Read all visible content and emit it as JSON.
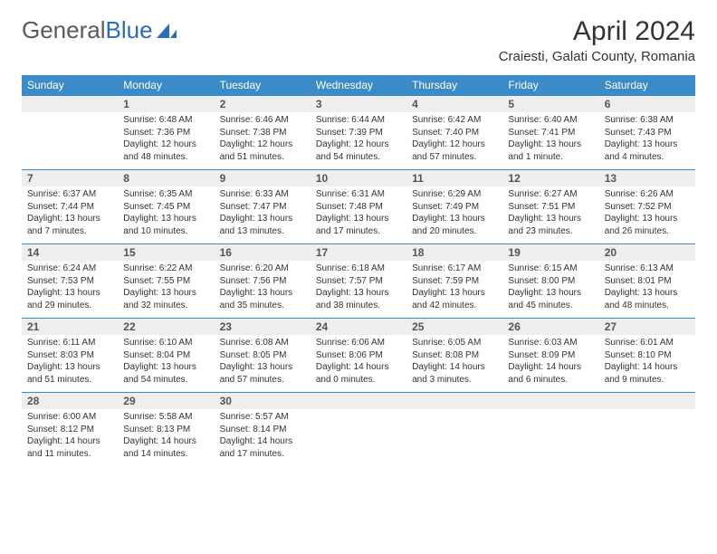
{
  "logo": {
    "text1": "General",
    "text2": "Blue"
  },
  "title": "April 2024",
  "location": "Craiesti, Galati County, Romania",
  "colors": {
    "header_bg": "#3b8bc9",
    "header_fg": "#ffffff",
    "daynum_bg": "#eeeeee",
    "row_border": "#3b8bc9",
    "logo_gray": "#5a5a5a",
    "logo_blue": "#2a6db8"
  },
  "weekdays": [
    "Sunday",
    "Monday",
    "Tuesday",
    "Wednesday",
    "Thursday",
    "Friday",
    "Saturday"
  ],
  "weeks": [
    [
      null,
      {
        "n": "1",
        "sr": "Sunrise: 6:48 AM",
        "ss": "Sunset: 7:36 PM",
        "dl": "Daylight: 12 hours and 48 minutes."
      },
      {
        "n": "2",
        "sr": "Sunrise: 6:46 AM",
        "ss": "Sunset: 7:38 PM",
        "dl": "Daylight: 12 hours and 51 minutes."
      },
      {
        "n": "3",
        "sr": "Sunrise: 6:44 AM",
        "ss": "Sunset: 7:39 PM",
        "dl": "Daylight: 12 hours and 54 minutes."
      },
      {
        "n": "4",
        "sr": "Sunrise: 6:42 AM",
        "ss": "Sunset: 7:40 PM",
        "dl": "Daylight: 12 hours and 57 minutes."
      },
      {
        "n": "5",
        "sr": "Sunrise: 6:40 AM",
        "ss": "Sunset: 7:41 PM",
        "dl": "Daylight: 13 hours and 1 minute."
      },
      {
        "n": "6",
        "sr": "Sunrise: 6:38 AM",
        "ss": "Sunset: 7:43 PM",
        "dl": "Daylight: 13 hours and 4 minutes."
      }
    ],
    [
      {
        "n": "7",
        "sr": "Sunrise: 6:37 AM",
        "ss": "Sunset: 7:44 PM",
        "dl": "Daylight: 13 hours and 7 minutes."
      },
      {
        "n": "8",
        "sr": "Sunrise: 6:35 AM",
        "ss": "Sunset: 7:45 PM",
        "dl": "Daylight: 13 hours and 10 minutes."
      },
      {
        "n": "9",
        "sr": "Sunrise: 6:33 AM",
        "ss": "Sunset: 7:47 PM",
        "dl": "Daylight: 13 hours and 13 minutes."
      },
      {
        "n": "10",
        "sr": "Sunrise: 6:31 AM",
        "ss": "Sunset: 7:48 PM",
        "dl": "Daylight: 13 hours and 17 minutes."
      },
      {
        "n": "11",
        "sr": "Sunrise: 6:29 AM",
        "ss": "Sunset: 7:49 PM",
        "dl": "Daylight: 13 hours and 20 minutes."
      },
      {
        "n": "12",
        "sr": "Sunrise: 6:27 AM",
        "ss": "Sunset: 7:51 PM",
        "dl": "Daylight: 13 hours and 23 minutes."
      },
      {
        "n": "13",
        "sr": "Sunrise: 6:26 AM",
        "ss": "Sunset: 7:52 PM",
        "dl": "Daylight: 13 hours and 26 minutes."
      }
    ],
    [
      {
        "n": "14",
        "sr": "Sunrise: 6:24 AM",
        "ss": "Sunset: 7:53 PM",
        "dl": "Daylight: 13 hours and 29 minutes."
      },
      {
        "n": "15",
        "sr": "Sunrise: 6:22 AM",
        "ss": "Sunset: 7:55 PM",
        "dl": "Daylight: 13 hours and 32 minutes."
      },
      {
        "n": "16",
        "sr": "Sunrise: 6:20 AM",
        "ss": "Sunset: 7:56 PM",
        "dl": "Daylight: 13 hours and 35 minutes."
      },
      {
        "n": "17",
        "sr": "Sunrise: 6:18 AM",
        "ss": "Sunset: 7:57 PM",
        "dl": "Daylight: 13 hours and 38 minutes."
      },
      {
        "n": "18",
        "sr": "Sunrise: 6:17 AM",
        "ss": "Sunset: 7:59 PM",
        "dl": "Daylight: 13 hours and 42 minutes."
      },
      {
        "n": "19",
        "sr": "Sunrise: 6:15 AM",
        "ss": "Sunset: 8:00 PM",
        "dl": "Daylight: 13 hours and 45 minutes."
      },
      {
        "n": "20",
        "sr": "Sunrise: 6:13 AM",
        "ss": "Sunset: 8:01 PM",
        "dl": "Daylight: 13 hours and 48 minutes."
      }
    ],
    [
      {
        "n": "21",
        "sr": "Sunrise: 6:11 AM",
        "ss": "Sunset: 8:03 PM",
        "dl": "Daylight: 13 hours and 51 minutes."
      },
      {
        "n": "22",
        "sr": "Sunrise: 6:10 AM",
        "ss": "Sunset: 8:04 PM",
        "dl": "Daylight: 13 hours and 54 minutes."
      },
      {
        "n": "23",
        "sr": "Sunrise: 6:08 AM",
        "ss": "Sunset: 8:05 PM",
        "dl": "Daylight: 13 hours and 57 minutes."
      },
      {
        "n": "24",
        "sr": "Sunrise: 6:06 AM",
        "ss": "Sunset: 8:06 PM",
        "dl": "Daylight: 14 hours and 0 minutes."
      },
      {
        "n": "25",
        "sr": "Sunrise: 6:05 AM",
        "ss": "Sunset: 8:08 PM",
        "dl": "Daylight: 14 hours and 3 minutes."
      },
      {
        "n": "26",
        "sr": "Sunrise: 6:03 AM",
        "ss": "Sunset: 8:09 PM",
        "dl": "Daylight: 14 hours and 6 minutes."
      },
      {
        "n": "27",
        "sr": "Sunrise: 6:01 AM",
        "ss": "Sunset: 8:10 PM",
        "dl": "Daylight: 14 hours and 9 minutes."
      }
    ],
    [
      {
        "n": "28",
        "sr": "Sunrise: 6:00 AM",
        "ss": "Sunset: 8:12 PM",
        "dl": "Daylight: 14 hours and 11 minutes."
      },
      {
        "n": "29",
        "sr": "Sunrise: 5:58 AM",
        "ss": "Sunset: 8:13 PM",
        "dl": "Daylight: 14 hours and 14 minutes."
      },
      {
        "n": "30",
        "sr": "Sunrise: 5:57 AM",
        "ss": "Sunset: 8:14 PM",
        "dl": "Daylight: 14 hours and 17 minutes."
      },
      null,
      null,
      null,
      null
    ]
  ]
}
